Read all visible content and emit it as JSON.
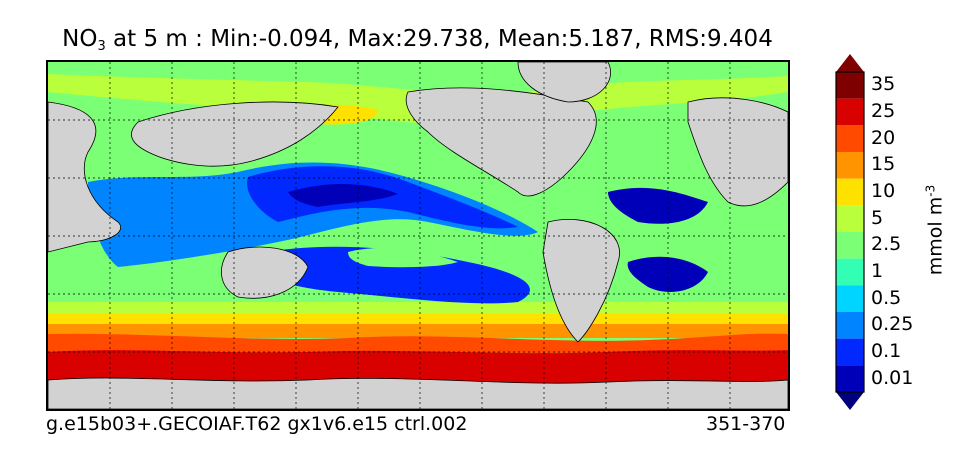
{
  "title": {
    "var_main": "NO",
    "var_sub": "3",
    "rest": " at 5 m : Min:-0.094, Max:29.738, Mean:5.187, RMS:9.404"
  },
  "colorbar": {
    "unit_main": "mmol m",
    "unit_sup": "-3",
    "levels": [
      "35",
      "25",
      "20",
      "15",
      "10",
      "5",
      "2.5",
      "1",
      "0.5",
      "0.25",
      "0.1",
      "0.01"
    ],
    "colors": [
      "#7f0000",
      "#d90000",
      "#ff4a00",
      "#ff9400",
      "#ffe100",
      "#b9ff3c",
      "#7aff75",
      "#33ffb4",
      "#00d5ff",
      "#0084ff",
      "#0028ff",
      "#0000b9"
    ],
    "low_extend_color": "#00007f",
    "high_extend_color": "#7f0000"
  },
  "map": {
    "land_color": "#d2d2d2",
    "grid": "dotted"
  },
  "footer": {
    "case": "g.e15b03+.GECOIAF.T62 gx1v6.e15 ctrl.002",
    "years": "351-370"
  }
}
